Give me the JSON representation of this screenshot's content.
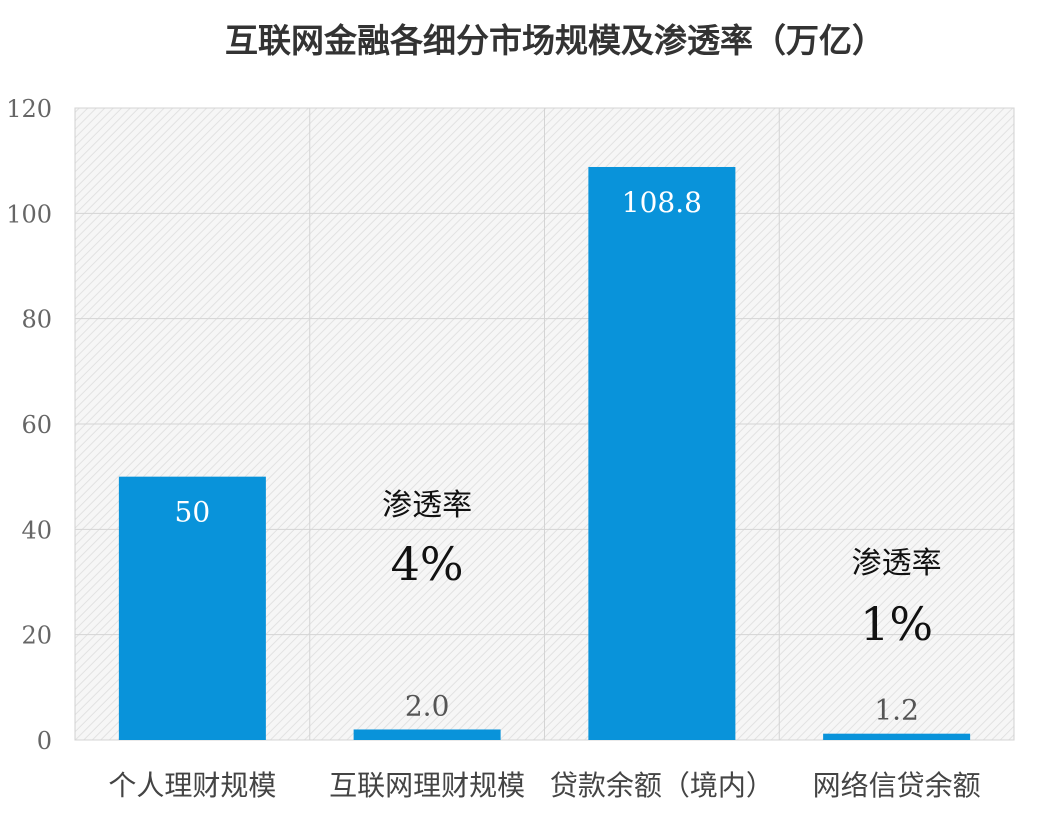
{
  "chart_data": {
    "type": "bar",
    "title": "互联网金融各细分市场规模及渗透率（万亿）",
    "categories": [
      "个人理财规模",
      "互联网理财规模",
      "贷款余额（境内）",
      "网络信贷余额"
    ],
    "values": [
      50,
      2.0,
      108.8,
      1.2
    ],
    "value_labels": [
      "50",
      "2.0",
      "108.8",
      "1.2"
    ],
    "ylim": [
      0,
      120
    ],
    "yticks": [
      0,
      20,
      40,
      60,
      80,
      100,
      120
    ],
    "grid": true,
    "bar_color": "#0993DA",
    "annotations": [
      {
        "category_index": 1,
        "heading": "渗透率",
        "value": "4%"
      },
      {
        "category_index": 3,
        "heading": "渗透率",
        "value": "1%"
      }
    ]
  }
}
